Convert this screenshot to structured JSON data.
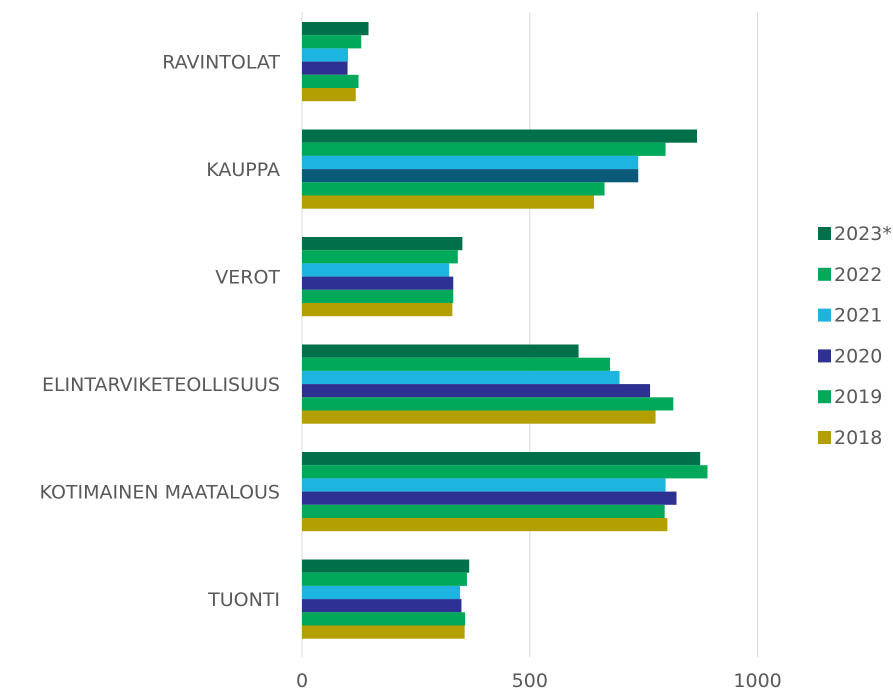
{
  "chart_data": {
    "type": "bar",
    "orientation": "horizontal",
    "categories": [
      "RAVINTOLAT",
      "KAUPPA",
      "VEROT",
      "ELINTARVIKETEOLLISUUS",
      "KOTIMAINEN MAATALOUS",
      "TUONTI"
    ],
    "series": [
      {
        "name": "2023*",
        "color": "#00704a",
        "values": [
          146,
          867,
          352,
          607,
          874,
          367
        ]
      },
      {
        "name": "2022",
        "color": "#00a859",
        "values": [
          130,
          798,
          342,
          676,
          890,
          362
        ]
      },
      {
        "name": "2021",
        "color": "#1db4e0",
        "values": [
          101,
          738,
          323,
          697,
          798,
          347
        ]
      },
      {
        "name": "2020",
        "color": "#2e3192",
        "values": [
          100,
          738,
          332,
          764,
          822,
          350
        ]
      },
      {
        "name": "2019",
        "color": "#00a859",
        "values": [
          124,
          664,
          332,
          815,
          796,
          358
        ]
      },
      {
        "name": "2018",
        "color": "#b3a000",
        "values": [
          118,
          641,
          330,
          776,
          802,
          357
        ]
      }
    ],
    "category_colors": {
      "KAUPPA": {
        "2020": "#0b5a7a"
      }
    },
    "xticks": [
      "0",
      "500",
      "1000"
    ],
    "xlim": [
      0,
      1300
    ],
    "grid": true,
    "legend_position": "right",
    "title": "",
    "xlabel": "",
    "ylabel": ""
  }
}
